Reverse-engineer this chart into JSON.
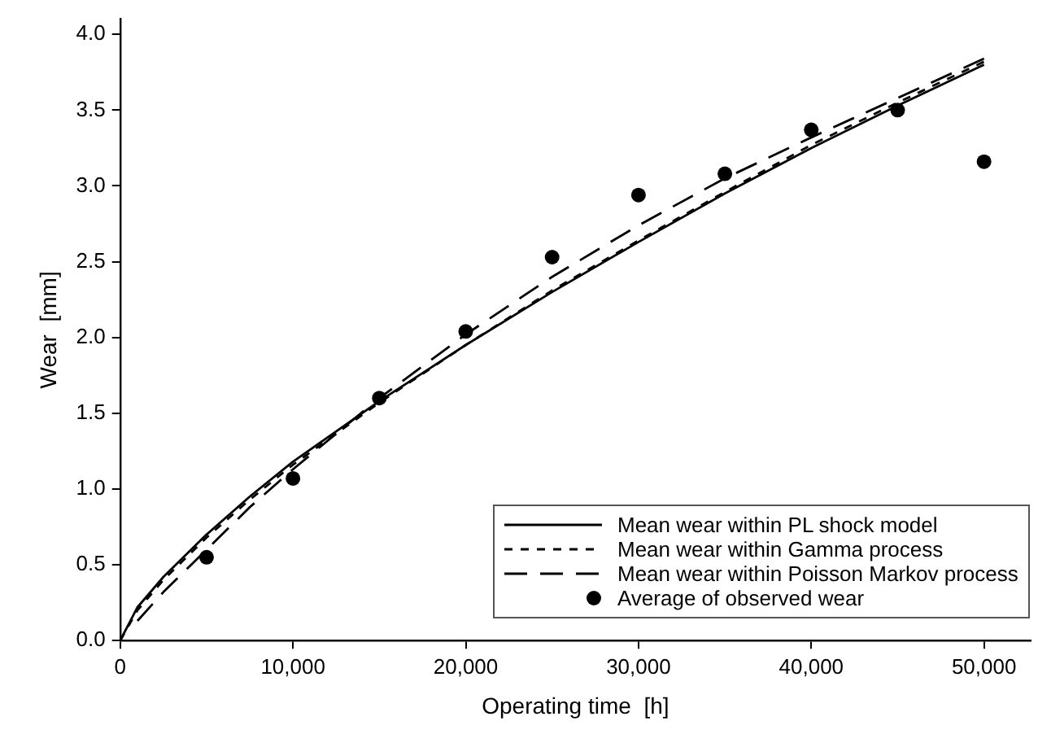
{
  "chart_data": {
    "type": "line",
    "xlabel": "Operating time  [h]",
    "ylabel": "Wear  [mm]",
    "xlim": [
      0,
      52700
    ],
    "xticks": [
      {
        "value": 0,
        "label": "0"
      },
      {
        "value": 10000,
        "label": "10,000"
      },
      {
        "value": 20000,
        "label": "20,000"
      },
      {
        "value": 30000,
        "label": "30,000"
      },
      {
        "value": 40000,
        "label": "40,000"
      },
      {
        "value": 50000,
        "label": "50,000"
      }
    ],
    "ylim": [
      0,
      4.1
    ],
    "yticks": [
      {
        "value": 0,
        "label": "0.0"
      },
      {
        "value": 0.5,
        "label": "0.5"
      },
      {
        "value": 1,
        "label": "1.0"
      },
      {
        "value": 1.5,
        "label": "1.5"
      },
      {
        "value": 2,
        "label": "2.0"
      },
      {
        "value": 2.5,
        "label": "2.5"
      },
      {
        "value": 3,
        "label": "3.0"
      },
      {
        "value": 3.5,
        "label": "3.5"
      },
      {
        "value": 4,
        "label": "4.0"
      }
    ],
    "grid": false,
    "legend": "bottom right",
    "series": [
      {
        "name": "Mean wear within PL shock model",
        "color": "#000000",
        "line_style": "solid",
        "marker": "none",
        "x": [
          0,
          1000,
          2500,
          5000,
          7500,
          10000,
          15000,
          20000,
          25000,
          30000,
          35000,
          40000,
          45000,
          50000
        ],
        "values": [
          0,
          0.22,
          0.42,
          0.7,
          0.95,
          1.18,
          1.58,
          1.95,
          2.3,
          2.63,
          2.95,
          3.25,
          3.53,
          3.8
        ]
      },
      {
        "name": "Mean wear within Gamma process",
        "color": "#000000",
        "line_style": "dashed",
        "marker": "none",
        "x": [
          0,
          1000,
          2500,
          5000,
          7500,
          10000,
          15000,
          20000,
          25000,
          30000,
          35000,
          40000,
          45000,
          50000
        ],
        "values": [
          0,
          0.2,
          0.4,
          0.68,
          0.93,
          1.16,
          1.57,
          1.95,
          2.31,
          2.64,
          2.96,
          3.27,
          3.55,
          3.82
        ]
      },
      {
        "name": "Mean wear within Poisson Markov process",
        "color": "#000000",
        "line_style": "dashed",
        "marker": "none",
        "x": [
          1000,
          2500,
          5000,
          7500,
          10000,
          15000,
          20000,
          25000,
          30000,
          35000,
          40000,
          45000,
          50000
        ],
        "values": [
          0.13,
          0.32,
          0.6,
          0.88,
          1.13,
          1.6,
          2.02,
          2.4,
          2.74,
          3.05,
          3.32,
          3.58,
          3.84
        ]
      },
      {
        "name": "Average of observed wear",
        "type": "scatter",
        "color": "#000000",
        "marker": "circle",
        "x": [
          5000,
          10000,
          15000,
          20000,
          25000,
          30000,
          35000,
          40000,
          45000,
          50000
        ],
        "values": [
          0.55,
          1.07,
          1.6,
          2.04,
          2.53,
          2.94,
          3.08,
          3.37,
          3.5,
          3.16
        ]
      }
    ]
  }
}
